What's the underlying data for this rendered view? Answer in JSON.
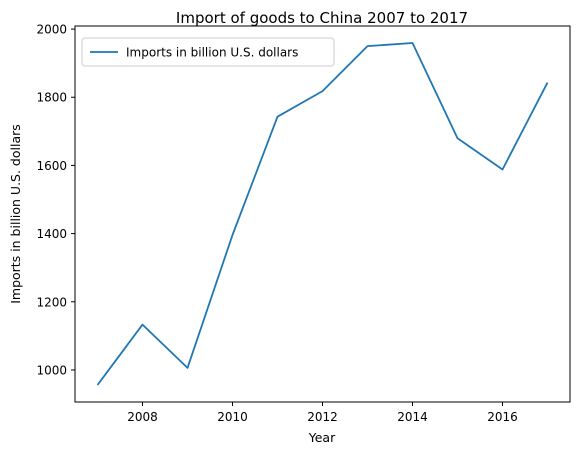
{
  "chart_data": {
    "type": "line",
    "title": "Import of goods to China 2007 to 2017",
    "xlabel": "Year",
    "ylabel": "Imports in billion U.S. dollars",
    "x": [
      2007,
      2008,
      2009,
      2010,
      2011,
      2012,
      2013,
      2014,
      2015,
      2016,
      2017
    ],
    "series": [
      {
        "name": "Imports in billion U.S. dollars",
        "values": [
          956,
          1133,
          1006,
          1396,
          1743,
          1818,
          1950,
          1959,
          1680,
          1588,
          1843
        ],
        "color": "#1f77b4"
      }
    ],
    "xlim": [
      2006.5,
      2017.5
    ],
    "ylim": [
      906,
      2009
    ],
    "xticks": [
      2008,
      2010,
      2012,
      2014,
      2016
    ],
    "yticks": [
      1000,
      1200,
      1400,
      1600,
      1800,
      2000
    ],
    "grid": false,
    "legend_position": "top-left"
  }
}
